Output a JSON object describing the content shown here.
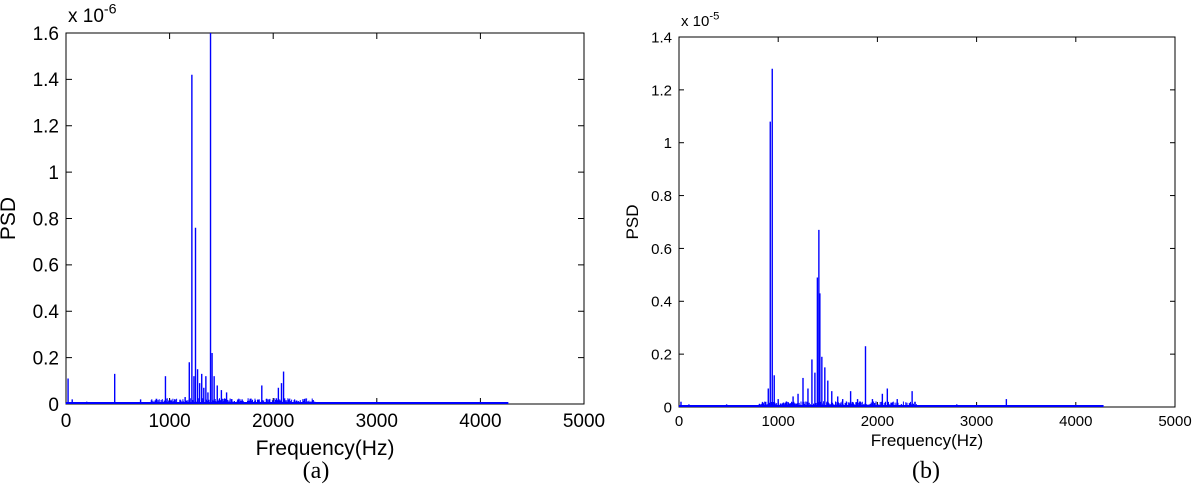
{
  "chart_data": [
    {
      "type": "line",
      "caption": "(a)",
      "xlabel": "Frequency(Hz)",
      "ylabel": "PSD",
      "multiplier": "x 10",
      "exponent": "-6",
      "xlim": [
        0,
        5000
      ],
      "ylim": [
        0,
        1.6
      ],
      "xticks": [
        0,
        1000,
        2000,
        3000,
        4000,
        5000
      ],
      "yticks": [
        0,
        0.2,
        0.4,
        0.6,
        0.8,
        1,
        1.2,
        1.4,
        1.6
      ],
      "ytick_labels": [
        "0",
        "0.2",
        "0.4",
        "0.6",
        "0.8",
        "1",
        "1.2",
        "1.4",
        "1.6"
      ],
      "x_end": 4270,
      "color": "#0000ff",
      "peaks": [
        {
          "x": 20,
          "y": 0.11
        },
        {
          "x": 60,
          "y": 0.02
        },
        {
          "x": 200,
          "y": 0.01
        },
        {
          "x": 470,
          "y": 0.13
        },
        {
          "x": 720,
          "y": 0.02
        },
        {
          "x": 960,
          "y": 0.12
        },
        {
          "x": 1050,
          "y": 0.02
        },
        {
          "x": 1150,
          "y": 0.03
        },
        {
          "x": 1190,
          "y": 0.18
        },
        {
          "x": 1215,
          "y": 1.42
        },
        {
          "x": 1235,
          "y": 0.12
        },
        {
          "x": 1250,
          "y": 0.76
        },
        {
          "x": 1270,
          "y": 0.15
        },
        {
          "x": 1290,
          "y": 0.09
        },
        {
          "x": 1310,
          "y": 0.13
        },
        {
          "x": 1330,
          "y": 0.07
        },
        {
          "x": 1350,
          "y": 0.12
        },
        {
          "x": 1370,
          "y": 0.05
        },
        {
          "x": 1395,
          "y": 1.6
        },
        {
          "x": 1410,
          "y": 0.22
        },
        {
          "x": 1430,
          "y": 0.12
        },
        {
          "x": 1460,
          "y": 0.08
        },
        {
          "x": 1500,
          "y": 0.06
        },
        {
          "x": 1550,
          "y": 0.05
        },
        {
          "x": 1600,
          "y": 0.02
        },
        {
          "x": 1700,
          "y": 0.02
        },
        {
          "x": 1890,
          "y": 0.08
        },
        {
          "x": 1950,
          "y": 0.02
        },
        {
          "x": 2050,
          "y": 0.07
        },
        {
          "x": 2080,
          "y": 0.09
        },
        {
          "x": 2100,
          "y": 0.14
        },
        {
          "x": 2150,
          "y": 0.02
        },
        {
          "x": 2400,
          "y": 0.01
        },
        {
          "x": 3000,
          "y": 0.005
        }
      ]
    },
    {
      "type": "line",
      "caption": "(b)",
      "xlabel": "Frequency(Hz)",
      "ylabel": "PSD",
      "multiplier": "x 10",
      "exponent": "-5",
      "xlim": [
        0,
        5000
      ],
      "ylim": [
        0,
        1.4
      ],
      "xticks": [
        0,
        1000,
        2000,
        3000,
        4000,
        5000
      ],
      "yticks": [
        0,
        0.2,
        0.4,
        0.6,
        0.8,
        1,
        1.2,
        1.4
      ],
      "ytick_labels": [
        "0",
        "0.2",
        "0.4",
        "0.6",
        "0.8",
        "1",
        "1.2",
        "1.4"
      ],
      "x_end": 4280,
      "color": "#0000ff",
      "peaks": [
        {
          "x": 20,
          "y": 0.02
        },
        {
          "x": 100,
          "y": 0.01
        },
        {
          "x": 480,
          "y": 0.01
        },
        {
          "x": 900,
          "y": 0.07
        },
        {
          "x": 920,
          "y": 1.08
        },
        {
          "x": 940,
          "y": 1.28
        },
        {
          "x": 960,
          "y": 0.12
        },
        {
          "x": 1000,
          "y": 0.03
        },
        {
          "x": 1080,
          "y": 0.02
        },
        {
          "x": 1150,
          "y": 0.04
        },
        {
          "x": 1200,
          "y": 0.05
        },
        {
          "x": 1250,
          "y": 0.11
        },
        {
          "x": 1300,
          "y": 0.07
        },
        {
          "x": 1340,
          "y": 0.18
        },
        {
          "x": 1370,
          "y": 0.13
        },
        {
          "x": 1395,
          "y": 0.49
        },
        {
          "x": 1410,
          "y": 0.67
        },
        {
          "x": 1420,
          "y": 0.43
        },
        {
          "x": 1440,
          "y": 0.19
        },
        {
          "x": 1470,
          "y": 0.15
        },
        {
          "x": 1500,
          "y": 0.1
        },
        {
          "x": 1540,
          "y": 0.06
        },
        {
          "x": 1600,
          "y": 0.04
        },
        {
          "x": 1650,
          "y": 0.03
        },
        {
          "x": 1730,
          "y": 0.06
        },
        {
          "x": 1800,
          "y": 0.03
        },
        {
          "x": 1880,
          "y": 0.23
        },
        {
          "x": 1950,
          "y": 0.03
        },
        {
          "x": 2050,
          "y": 0.05
        },
        {
          "x": 2100,
          "y": 0.07
        },
        {
          "x": 2200,
          "y": 0.03
        },
        {
          "x": 2350,
          "y": 0.06
        },
        {
          "x": 2800,
          "y": 0.01
        },
        {
          "x": 3300,
          "y": 0.03
        },
        {
          "x": 3800,
          "y": 0.005
        }
      ]
    }
  ]
}
